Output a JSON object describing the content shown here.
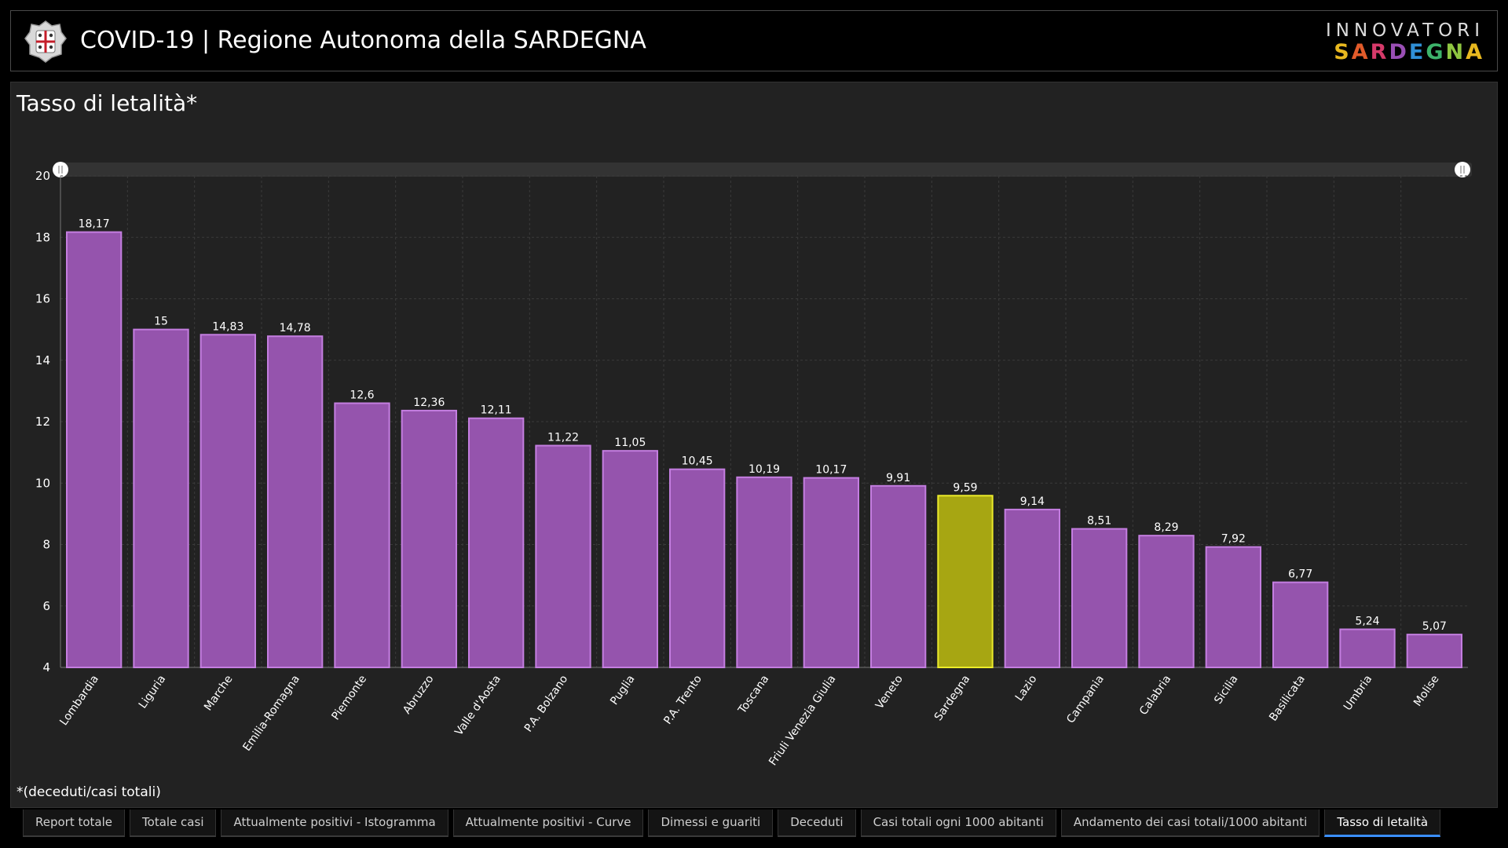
{
  "header": {
    "title": "COVID-19 | Regione Autonoma della SARDEGNA",
    "brand_top": "INNOVATORI",
    "brand_bottom": "SARDEGNA",
    "brand_colors": [
      "#e8b81f",
      "#e25b2a",
      "#d63a6a",
      "#9a4fb5",
      "#2f8fd6",
      "#3db36b",
      "#8fc641",
      "#e8b81f"
    ]
  },
  "panel": {
    "title": "Tasso di letalità*",
    "footnote": "*(deceduti/casi totali)"
  },
  "chart_data": {
    "type": "bar",
    "categories": [
      "Lombardia",
      "Liguria",
      "Marche",
      "Emilia-Romagna",
      "Piemonte",
      "Abruzzo",
      "Valle d'Aosta",
      "P.A. Bolzano",
      "Puglia",
      "P.A. Trento",
      "Toscana",
      "Friuli Venezia Giulia",
      "Veneto",
      "Sardegna",
      "Lazio",
      "Campania",
      "Calabria",
      "Sicilia",
      "Basilicata",
      "Umbria",
      "Molise"
    ],
    "values": [
      18.17,
      15,
      14.83,
      14.78,
      12.6,
      12.36,
      12.11,
      11.22,
      11.05,
      10.45,
      10.19,
      10.17,
      9.91,
      9.59,
      9.14,
      8.51,
      8.29,
      7.92,
      6.77,
      5.24,
      5.07
    ],
    "value_labels": [
      "18,17",
      "15",
      "14,83",
      "14,78",
      "12,6",
      "12,36",
      "12,11",
      "11,22",
      "11,05",
      "10,45",
      "10,19",
      "10,17",
      "9,91",
      "9,59",
      "9,14",
      "8,51",
      "8,29",
      "7,92",
      "6,77",
      "5,24",
      "5,07"
    ],
    "ylim": [
      4,
      20
    ],
    "yticks": [
      4,
      6,
      8,
      10,
      12,
      14,
      16,
      18,
      20
    ],
    "highlight": "Sardegna",
    "grid": true,
    "legend": "none",
    "colors": {
      "bar_fill": "#9554ad",
      "bar_stroke": "#c47ee0",
      "highlight_fill": "#a7a612",
      "highlight_stroke": "#ecec2a",
      "grid": "#3a3a3a",
      "axis_text": "#ffffff",
      "scroll_track": "#333333"
    }
  },
  "tabs": [
    {
      "label": "Report totale",
      "active": false
    },
    {
      "label": "Totale casi",
      "active": false
    },
    {
      "label": "Attualmente positivi - Istogramma",
      "active": false
    },
    {
      "label": "Attualmente positivi - Curve",
      "active": false
    },
    {
      "label": "Dimessi e guariti",
      "active": false
    },
    {
      "label": "Deceduti",
      "active": false
    },
    {
      "label": "Casi totali ogni 1000 abitanti",
      "active": false
    },
    {
      "label": "Andamento dei casi totali/1000 abitanti",
      "active": false
    },
    {
      "label": "Tasso di letalità",
      "active": true
    }
  ]
}
